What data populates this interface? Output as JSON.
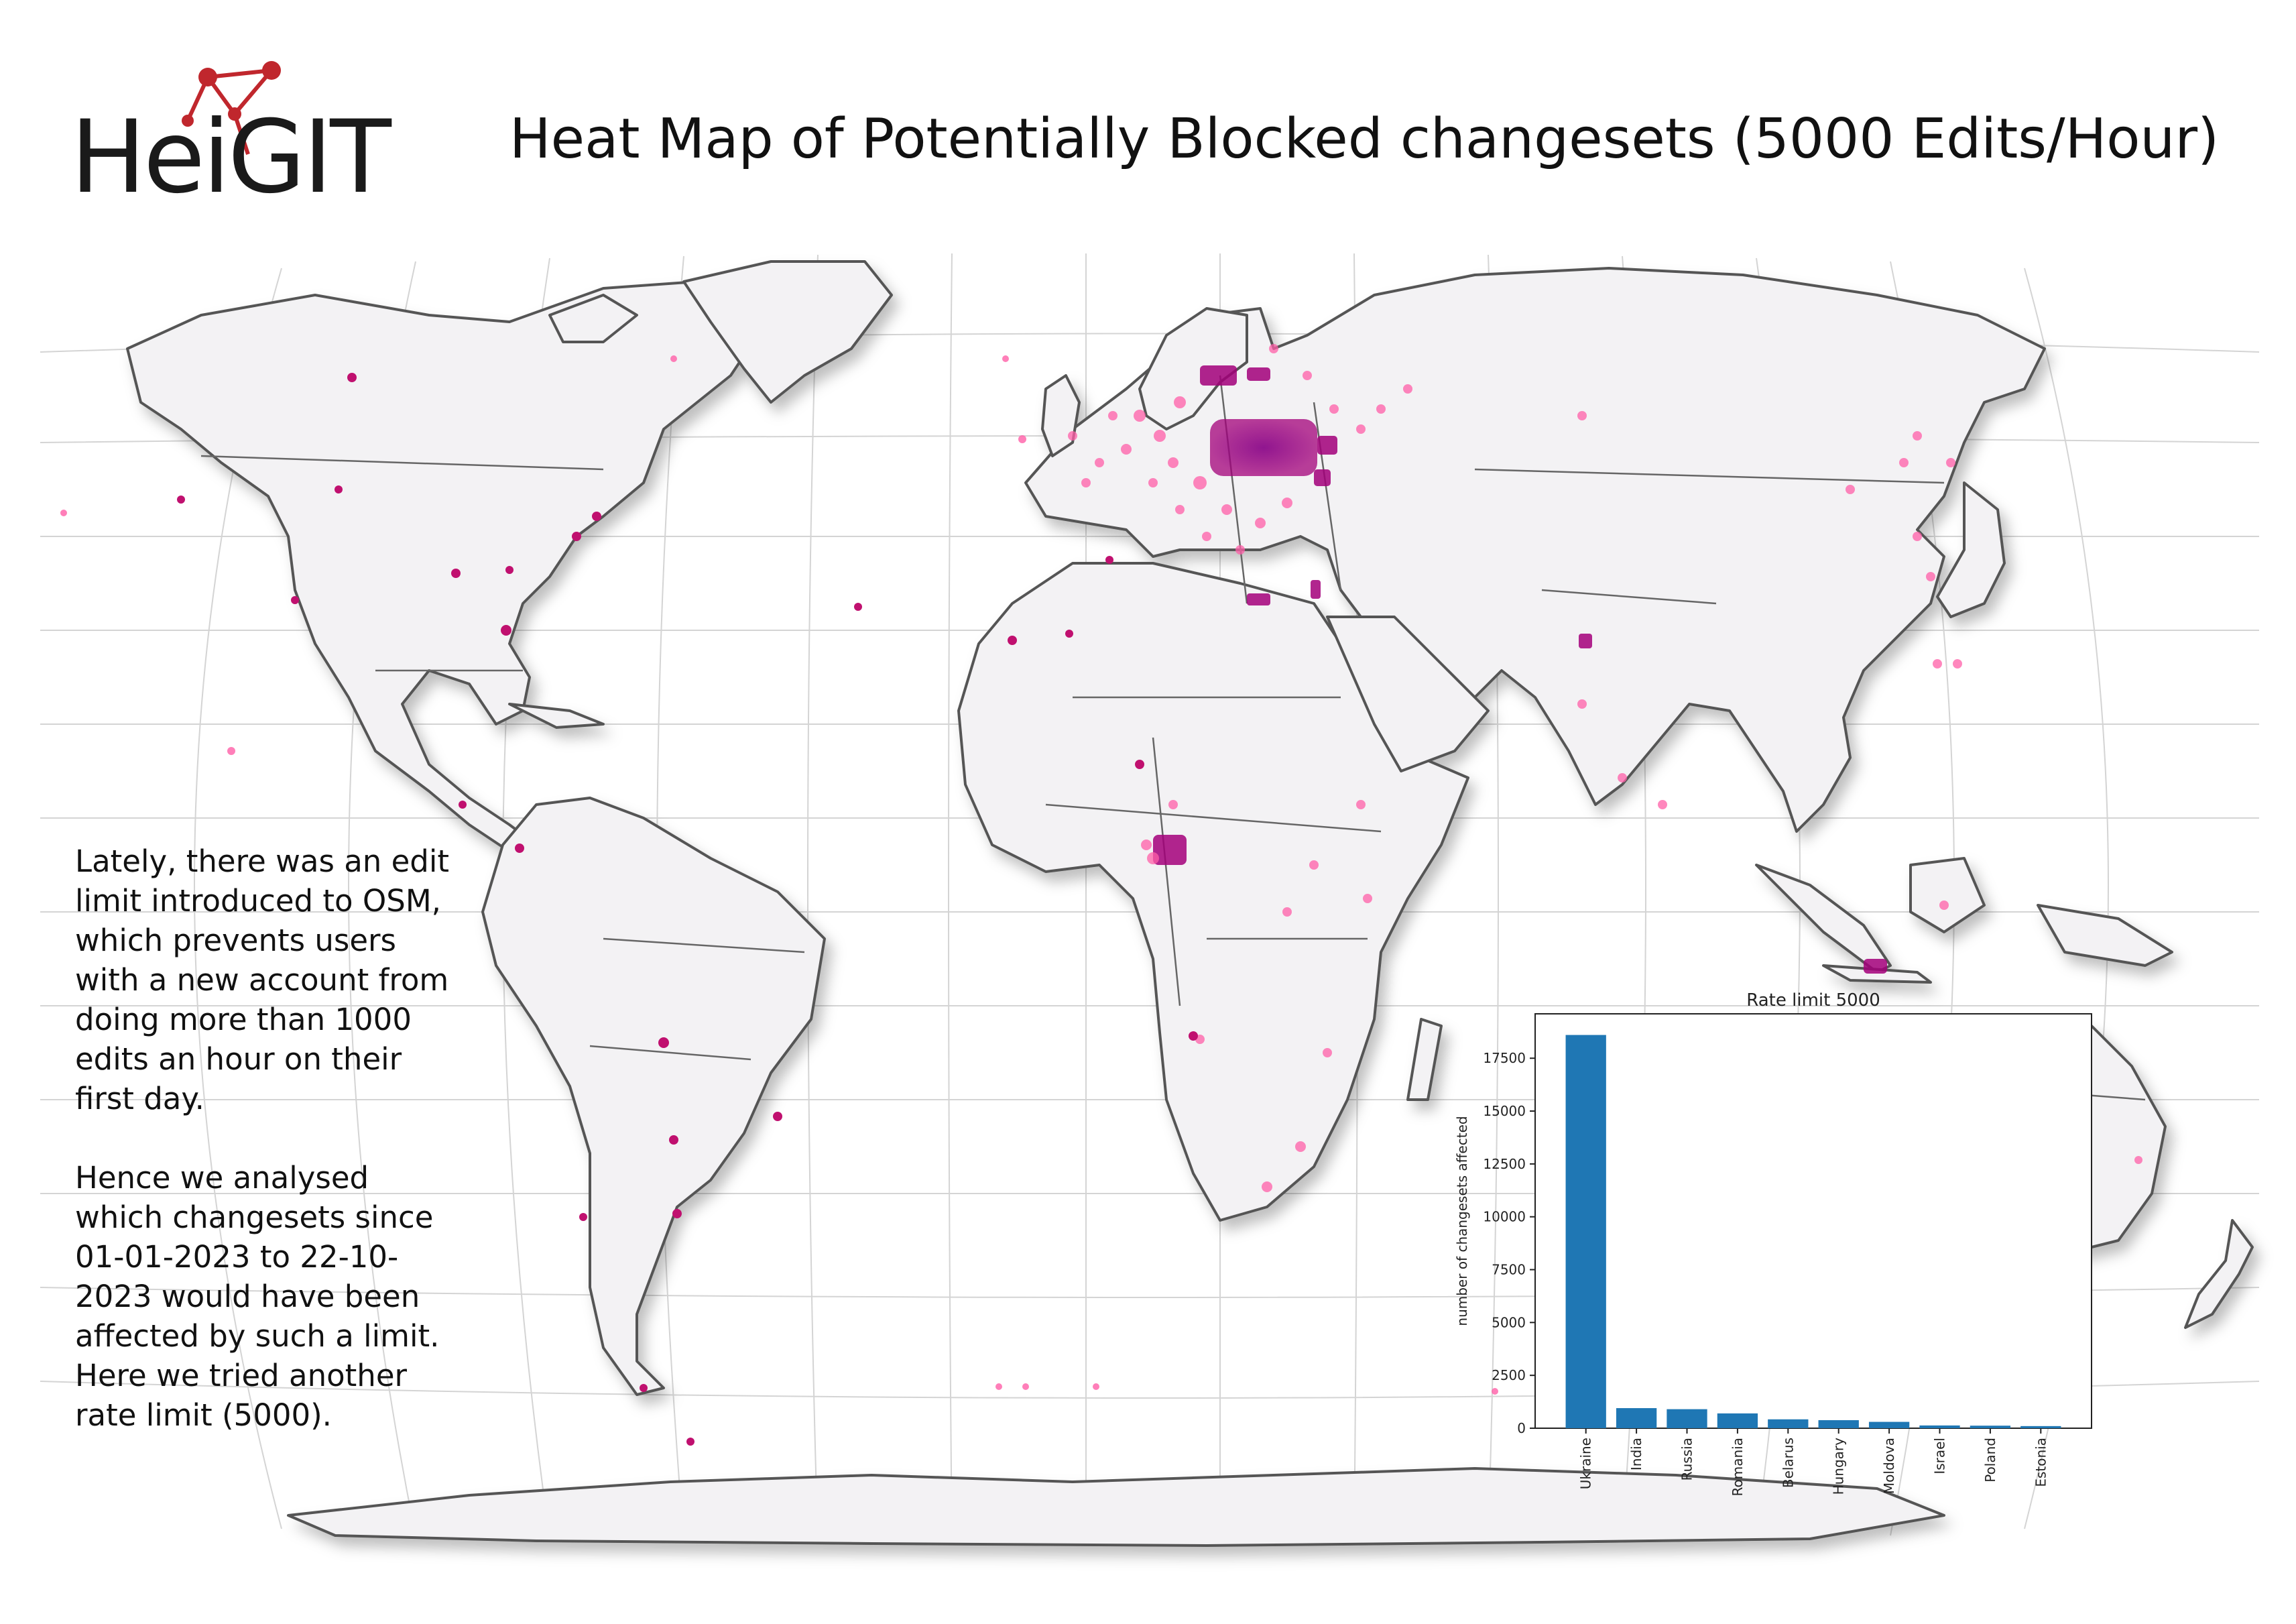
{
  "logo": {
    "text": "HeiGIT",
    "icon": "network-graph-icon",
    "icon_color": "#c0272d"
  },
  "title": "Heat Map of Potentially Blocked changesets  (5000 Edits/Hour)",
  "description": {
    "paragraph1": "Lately, there was an edit limit introduced to OSM, which prevents users with a new account from doing more than 1000 edits an hour on their first day.",
    "paragraph2": "Hence we analysed which changesets since 01-01-2023 to 22-10-2023 would have been affected by such a limit. Here we tried another rate limit (5000)."
  },
  "colors": {
    "land": "#f3f2f4",
    "border": "#555555",
    "hotspot": "#a3007a",
    "hotspot_light": "#ff5fa8",
    "bar": "#1f77b4"
  },
  "chart_data": {
    "type": "bar",
    "title": "Rate limit 5000",
    "xlabel": "",
    "ylabel": "number of changesets affected",
    "categories": [
      "Ukraine",
      "India",
      "Russia",
      "Romania",
      "Belarus",
      "Hungary",
      "Moldova",
      "Israel",
      "Poland",
      "Estonia"
    ],
    "values": [
      18600,
      950,
      900,
      700,
      420,
      380,
      300,
      130,
      120,
      100
    ],
    "yticks": [
      0,
      2500,
      5000,
      7500,
      10000,
      12500,
      15000,
      17500
    ],
    "ylim": [
      0,
      19600
    ],
    "grid": false
  }
}
